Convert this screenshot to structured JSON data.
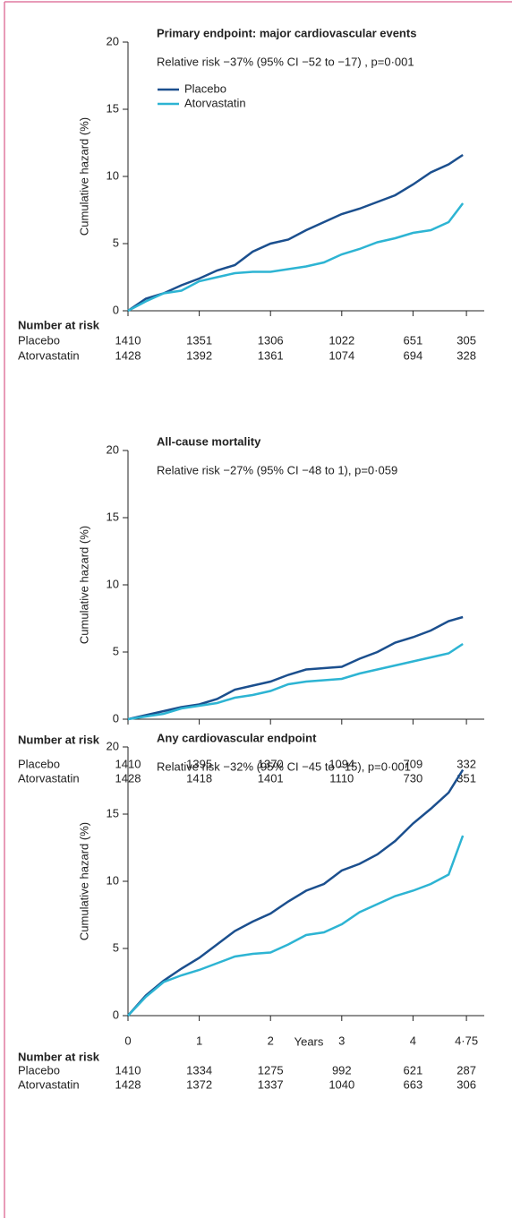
{
  "chart_data": [
    {
      "type": "line",
      "title": "Primary endpoint: major cardiovascular events",
      "annotation": "Relative risk −37% (95% CI −52 to −17) , p=0·001",
      "y_label": "Cumulative hazard (%)",
      "legend": true,
      "show_xtick_labels": false,
      "x": [
        0,
        0.25,
        0.5,
        0.75,
        1,
        1.25,
        1.5,
        1.75,
        2,
        2.25,
        2.5,
        2.75,
        3,
        3.25,
        3.5,
        3.75,
        4,
        4.25,
        4.5,
        4.7
      ],
      "series": [
        {
          "name": "Placebo",
          "color": "#1b4f8e",
          "values": [
            0,
            0.9,
            1.3,
            1.9,
            2.4,
            3.0,
            3.4,
            4.4,
            5.0,
            5.3,
            6.0,
            6.6,
            7.2,
            7.6,
            8.1,
            8.6,
            9.4,
            10.3,
            10.9,
            11.6
          ]
        },
        {
          "name": "Atorvastatin",
          "color": "#2db4d3",
          "values": [
            0,
            0.7,
            1.3,
            1.5,
            2.2,
            2.5,
            2.8,
            2.9,
            2.9,
            3.1,
            3.3,
            3.6,
            4.2,
            4.6,
            5.1,
            5.4,
            5.8,
            6.0,
            6.6,
            8.0
          ]
        }
      ],
      "xlim": [
        0,
        5
      ],
      "xticks": [
        0,
        1,
        2,
        3,
        4,
        {
          "value": 4.75,
          "label": "4·75"
        }
      ],
      "ylim": [
        0,
        20
      ],
      "yticks": [
        0,
        5,
        10,
        15,
        20
      ],
      "risk_table": {
        "title": "Number at risk",
        "rows": [
          {
            "name": "Placebo",
            "values": [
              1410,
              1351,
              1306,
              1022,
              651,
              305
            ]
          },
          {
            "name": "Atorvastatin",
            "values": [
              1428,
              1392,
              1361,
              1074,
              694,
              328
            ]
          }
        ]
      }
    },
    {
      "type": "line",
      "title": "All-cause mortality",
      "annotation": "Relative risk −27% (95% CI −48 to 1), p=0·059",
      "y_label": "Cumulative hazard (%)",
      "legend": false,
      "show_xtick_labels": false,
      "x": [
        0,
        0.25,
        0.5,
        0.75,
        1,
        1.25,
        1.5,
        1.75,
        2,
        2.25,
        2.5,
        2.75,
        3,
        3.25,
        3.5,
        3.75,
        4,
        4.25,
        4.5,
        4.7
      ],
      "series": [
        {
          "name": "Placebo",
          "color": "#1b4f8e",
          "values": [
            0,
            0.3,
            0.6,
            0.9,
            1.1,
            1.5,
            2.2,
            2.5,
            2.8,
            3.3,
            3.7,
            3.8,
            3.9,
            4.5,
            5.0,
            5.7,
            6.1,
            6.6,
            7.3,
            7.6
          ]
        },
        {
          "name": "Atorvastatin",
          "color": "#2db4d3",
          "values": [
            0,
            0.2,
            0.4,
            0.8,
            1.0,
            1.2,
            1.6,
            1.8,
            2.1,
            2.6,
            2.8,
            2.9,
            3.0,
            3.4,
            3.7,
            4.0,
            4.3,
            4.6,
            4.9,
            5.6
          ]
        }
      ],
      "xlim": [
        0,
        5
      ],
      "xticks": [
        0,
        1,
        2,
        3,
        4,
        {
          "value": 4.75,
          "label": "4·75"
        }
      ],
      "ylim": [
        0,
        20
      ],
      "yticks": [
        0,
        5,
        10,
        15,
        20
      ],
      "risk_table": {
        "title": "Number at risk",
        "rows": [
          {
            "name": "Placebo",
            "values": [
              1410,
              1395,
              1370,
              1094,
              709,
              332
            ]
          },
          {
            "name": "Atorvastatin",
            "values": [
              1428,
              1418,
              1401,
              1110,
              730,
              351
            ]
          }
        ]
      }
    },
    {
      "type": "line",
      "title": "Any cardiovascular endpoint",
      "annotation": "Relative risk −32% (95% CI −45 to −15), p=0·001",
      "y_label": "Cumulative hazard (%)",
      "x_label": "Years",
      "legend": false,
      "show_xtick_labels": true,
      "x": [
        0,
        0.25,
        0.5,
        0.75,
        1,
        1.25,
        1.5,
        1.75,
        2,
        2.25,
        2.5,
        2.75,
        3,
        3.25,
        3.5,
        3.75,
        4,
        4.25,
        4.5,
        4.7
      ],
      "series": [
        {
          "name": "Placebo",
          "color": "#1b4f8e",
          "values": [
            0,
            1.5,
            2.6,
            3.5,
            4.3,
            5.3,
            6.3,
            7.0,
            7.6,
            8.5,
            9.3,
            9.8,
            10.8,
            11.3,
            12.0,
            13.0,
            14.3,
            15.4,
            16.6,
            18.3
          ]
        },
        {
          "name": "Atorvastatin",
          "color": "#2db4d3",
          "values": [
            0,
            1.4,
            2.5,
            3.0,
            3.4,
            3.9,
            4.4,
            4.6,
            4.7,
            5.3,
            6.0,
            6.2,
            6.8,
            7.7,
            8.3,
            8.9,
            9.3,
            9.8,
            10.5,
            13.4
          ]
        }
      ],
      "xlim": [
        0,
        5
      ],
      "xticks": [
        0,
        1,
        2,
        3,
        4,
        {
          "value": 4.75,
          "label": "4·75"
        }
      ],
      "ylim": [
        0,
        20
      ],
      "yticks": [
        0,
        5,
        10,
        15,
        20
      ],
      "risk_table": {
        "title": "Number at risk",
        "rows": [
          {
            "name": "Placebo",
            "values": [
              1410,
              1334,
              1275,
              992,
              621,
              287
            ]
          },
          {
            "name": "Atorvastatin",
            "values": [
              1428,
              1372,
              1337,
              1040,
              663,
              306
            ]
          }
        ]
      }
    }
  ]
}
